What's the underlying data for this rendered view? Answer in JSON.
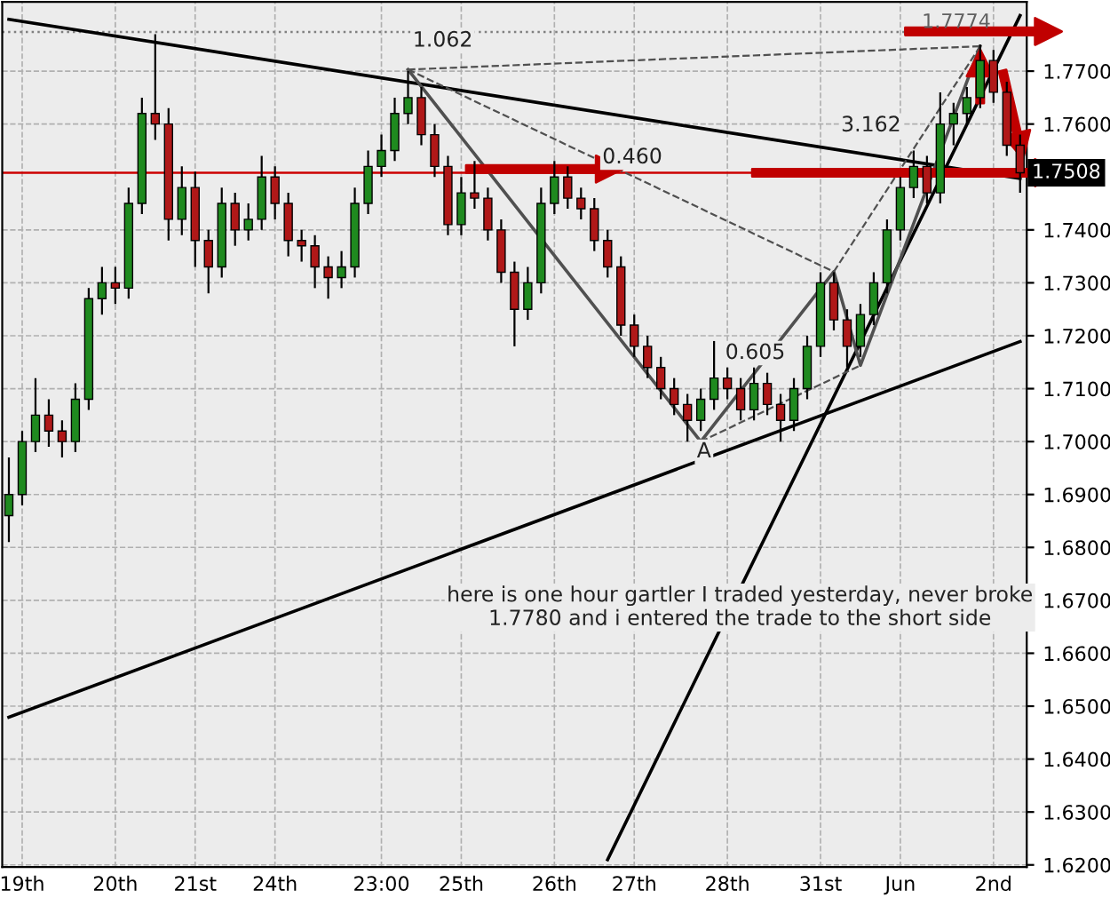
{
  "chart_data": {
    "type": "candlestick",
    "categories": [
      null,
      "19th",
      null,
      null,
      null,
      null,
      null,
      null,
      "20th",
      null,
      null,
      null,
      null,
      null,
      "21st",
      null,
      null,
      null,
      null,
      null,
      "24th",
      null,
      null,
      null,
      null,
      null,
      null,
      null,
      "23:00",
      null,
      null,
      null,
      null,
      null,
      "25th",
      null,
      null,
      null,
      null,
      null,
      null,
      "26th",
      null,
      null,
      null,
      null,
      null,
      "27th",
      null,
      null,
      null,
      null,
      null,
      null,
      "28th",
      null,
      null,
      null,
      null,
      null,
      null,
      "31st",
      null,
      null,
      null,
      null,
      null,
      "Jun",
      null,
      null,
      null,
      null,
      null,
      null,
      "2nd",
      null,
      null
    ],
    "ohlc": [
      [
        1.686,
        1.697,
        1.681,
        1.69
      ],
      [
        1.69,
        1.702,
        1.688,
        1.7
      ],
      [
        1.7,
        1.712,
        1.698,
        1.705
      ],
      [
        1.705,
        1.708,
        1.699,
        1.702
      ],
      [
        1.702,
        1.704,
        1.697,
        1.7
      ],
      [
        1.7,
        1.711,
        1.698,
        1.708
      ],
      [
        1.708,
        1.729,
        1.706,
        1.727
      ],
      [
        1.727,
        1.733,
        1.724,
        1.73
      ],
      [
        1.73,
        1.733,
        1.726,
        1.729
      ],
      [
        1.729,
        1.748,
        1.727,
        1.745
      ],
      [
        1.745,
        1.765,
        1.743,
        1.762
      ],
      [
        1.762,
        1.777,
        1.757,
        1.76
      ],
      [
        1.76,
        1.763,
        1.738,
        1.742
      ],
      [
        1.742,
        1.752,
        1.739,
        1.748
      ],
      [
        1.748,
        1.751,
        1.733,
        1.738
      ],
      [
        1.738,
        1.74,
        1.728,
        1.733
      ],
      [
        1.733,
        1.748,
        1.731,
        1.745
      ],
      [
        1.745,
        1.747,
        1.737,
        1.74
      ],
      [
        1.74,
        1.745,
        1.738,
        1.742
      ],
      [
        1.742,
        1.754,
        1.74,
        1.75
      ],
      [
        1.75,
        1.752,
        1.742,
        1.745
      ],
      [
        1.745,
        1.747,
        1.735,
        1.738
      ],
      [
        1.738,
        1.74,
        1.734,
        1.737
      ],
      [
        1.737,
        1.739,
        1.729,
        1.733
      ],
      [
        1.733,
        1.735,
        1.727,
        1.731
      ],
      [
        1.731,
        1.736,
        1.729,
        1.733
      ],
      [
        1.733,
        1.748,
        1.731,
        1.745
      ],
      [
        1.745,
        1.755,
        1.743,
        1.752
      ],
      [
        1.752,
        1.758,
        1.75,
        1.755
      ],
      [
        1.755,
        1.765,
        1.753,
        1.762
      ],
      [
        1.762,
        1.77,
        1.76,
        1.765
      ],
      [
        1.765,
        1.767,
        1.756,
        1.758
      ],
      [
        1.758,
        1.76,
        1.75,
        1.752
      ],
      [
        1.752,
        1.754,
        1.739,
        1.741
      ],
      [
        1.741,
        1.75,
        1.739,
        1.747
      ],
      [
        1.747,
        1.753,
        1.744,
        1.746
      ],
      [
        1.746,
        1.748,
        1.738,
        1.74
      ],
      [
        1.74,
        1.742,
        1.73,
        1.732
      ],
      [
        1.732,
        1.734,
        1.718,
        1.725
      ],
      [
        1.725,
        1.733,
        1.723,
        1.73
      ],
      [
        1.73,
        1.748,
        1.728,
        1.745
      ],
      [
        1.745,
        1.753,
        1.743,
        1.75
      ],
      [
        1.75,
        1.752,
        1.744,
        1.746
      ],
      [
        1.746,
        1.748,
        1.742,
        1.744
      ],
      [
        1.744,
        1.746,
        1.736,
        1.738
      ],
      [
        1.738,
        1.74,
        1.731,
        1.733
      ],
      [
        1.733,
        1.735,
        1.72,
        1.722
      ],
      [
        1.722,
        1.724,
        1.716,
        1.718
      ],
      [
        1.718,
        1.72,
        1.712,
        1.714
      ],
      [
        1.714,
        1.716,
        1.708,
        1.71
      ],
      [
        1.71,
        1.712,
        1.705,
        1.707
      ],
      [
        1.707,
        1.709,
        1.7,
        1.704
      ],
      [
        1.704,
        1.71,
        1.702,
        1.708
      ],
      [
        1.708,
        1.719,
        1.706,
        1.712
      ],
      [
        1.712,
        1.714,
        1.708,
        1.71
      ],
      [
        1.71,
        1.712,
        1.704,
        1.706
      ],
      [
        1.706,
        1.714,
        1.704,
        1.711
      ],
      [
        1.711,
        1.713,
        1.705,
        1.707
      ],
      [
        1.707,
        1.709,
        1.7,
        1.704
      ],
      [
        1.704,
        1.712,
        1.702,
        1.71
      ],
      [
        1.71,
        1.72,
        1.708,
        1.718
      ],
      [
        1.718,
        1.732,
        1.716,
        1.73
      ],
      [
        1.73,
        1.732,
        1.721,
        1.723
      ],
      [
        1.723,
        1.725,
        1.714,
        1.718
      ],
      [
        1.718,
        1.726,
        1.716,
        1.724
      ],
      [
        1.724,
        1.732,
        1.722,
        1.73
      ],
      [
        1.73,
        1.742,
        1.728,
        1.74
      ],
      [
        1.74,
        1.75,
        1.738,
        1.748
      ],
      [
        1.748,
        1.755,
        1.746,
        1.752
      ],
      [
        1.752,
        1.754,
        1.745,
        1.747
      ],
      [
        1.747,
        1.766,
        1.745,
        1.76
      ],
      [
        1.76,
        1.764,
        1.756,
        1.762
      ],
      [
        1.762,
        1.767,
        1.76,
        1.765
      ],
      [
        1.765,
        1.775,
        1.763,
        1.772
      ],
      [
        1.772,
        1.774,
        1.764,
        1.766
      ],
      [
        1.766,
        1.768,
        1.754,
        1.756
      ],
      [
        1.756,
        1.758,
        1.747,
        1.7508
      ]
    ],
    "series": [
      {
        "type": "line",
        "color": "#000000",
        "values": [
          1.7798,
          null,
          null,
          null,
          null,
          null,
          null,
          null,
          null,
          null,
          null,
          null,
          null,
          null,
          null,
          null,
          null,
          null,
          null,
          null,
          null,
          null,
          null,
          null,
          null,
          null,
          null,
          null,
          null,
          null,
          null,
          null,
          null,
          null,
          null,
          null,
          null,
          null,
          null,
          null,
          null,
          null,
          null,
          null,
          null,
          null,
          null,
          null,
          null,
          null,
          null,
          null,
          null,
          null,
          null,
          null,
          null,
          null,
          null,
          null,
          null,
          null,
          null,
          null,
          null,
          null,
          null,
          null,
          null,
          null,
          null,
          null,
          null,
          null,
          null,
          null,
          1.7497
        ]
      },
      {
        "type": "line",
        "color": "#000000",
        "values": [
          1.6479,
          null,
          null,
          null,
          null,
          null,
          null,
          null,
          null,
          null,
          null,
          null,
          null,
          null,
          null,
          null,
          null,
          null,
          null,
          null,
          null,
          null,
          null,
          null,
          null,
          null,
          null,
          null,
          null,
          null,
          null,
          null,
          null,
          null,
          null,
          null,
          null,
          null,
          null,
          null,
          null,
          null,
          null,
          null,
          null,
          null,
          null,
          null,
          null,
          null,
          null,
          null,
          null,
          null,
          null,
          null,
          null,
          null,
          null,
          null,
          null,
          null,
          null,
          null,
          null,
          null,
          null,
          null,
          null,
          null,
          null,
          null,
          null,
          null,
          null,
          null,
          1.7189
        ]
      },
      {
        "type": "line",
        "color": "#000000",
        "values": [
          null,
          null,
          null,
          null,
          null,
          null,
          null,
          null,
          null,
          null,
          null,
          null,
          null,
          null,
          null,
          null,
          null,
          null,
          null,
          null,
          null,
          null,
          null,
          null,
          null,
          null,
          null,
          null,
          null,
          null,
          null,
          null,
          null,
          null,
          null,
          null,
          null,
          null,
          null,
          null,
          null,
          null,
          null,
          null,
          null,
          1.621,
          null,
          null,
          null,
          null,
          null,
          null,
          null,
          null,
          null,
          null,
          null,
          null,
          null,
          null,
          null,
          null,
          null,
          null,
          null,
          null,
          null,
          null,
          null,
          null,
          null,
          null,
          null,
          null,
          null,
          null,
          1.7805
        ]
      },
      {
        "type": "line",
        "color": "#505050",
        "values": [
          null,
          null,
          null,
          null,
          null,
          null,
          null,
          null,
          null,
          null,
          null,
          null,
          null,
          null,
          null,
          null,
          null,
          null,
          null,
          null,
          null,
          null,
          null,
          null,
          null,
          null,
          null,
          null,
          null,
          null,
          1.7703,
          null,
          null,
          null,
          null,
          null,
          null,
          null,
          null,
          null,
          null,
          null,
          null,
          null,
          null,
          null,
          null,
          null,
          null,
          null,
          null,
          null,
          1.7,
          null,
          null,
          null,
          null,
          null,
          null,
          null,
          null,
          null,
          1.7321,
          null,
          1.7144,
          null,
          null,
          null,
          null,
          null,
          null,
          null,
          null,
          1.7747,
          null,
          null,
          null
        ]
      },
      {
        "type": "line",
        "color": "#505050",
        "line_style": "dashed",
        "values": [
          null,
          null,
          null,
          null,
          null,
          null,
          null,
          null,
          null,
          null,
          null,
          null,
          null,
          null,
          null,
          null,
          null,
          null,
          null,
          null,
          null,
          null,
          null,
          null,
          null,
          null,
          null,
          null,
          null,
          null,
          1.7703,
          null,
          null,
          null,
          null,
          null,
          null,
          null,
          null,
          null,
          null,
          null,
          null,
          null,
          null,
          null,
          null,
          null,
          null,
          null,
          null,
          null,
          null,
          null,
          null,
          null,
          null,
          null,
          null,
          null,
          null,
          null,
          1.7321,
          null,
          null,
          null,
          null,
          null,
          null,
          null,
          null,
          null,
          null,
          null,
          null,
          null,
          null
        ]
      },
      {
        "type": "line",
        "color": "#505050",
        "line_style": "dashed",
        "values": [
          null,
          null,
          null,
          null,
          null,
          null,
          null,
          null,
          null,
          null,
          null,
          null,
          null,
          null,
          null,
          null,
          null,
          null,
          null,
          null,
          null,
          null,
          null,
          null,
          null,
          null,
          null,
          null,
          null,
          null,
          null,
          null,
          null,
          null,
          null,
          null,
          null,
          null,
          null,
          null,
          null,
          null,
          null,
          null,
          null,
          null,
          null,
          null,
          null,
          null,
          null,
          null,
          1.7,
          null,
          null,
          null,
          null,
          null,
          null,
          null,
          null,
          null,
          null,
          null,
          1.7144,
          null,
          null,
          null,
          null,
          null,
          null,
          null,
          null,
          null,
          null,
          null,
          null
        ]
      },
      {
        "type": "line",
        "color": "#505050",
        "line_style": "dashed",
        "values": [
          null,
          null,
          null,
          null,
          null,
          null,
          null,
          null,
          null,
          null,
          null,
          null,
          null,
          null,
          null,
          null,
          null,
          null,
          null,
          null,
          null,
          null,
          null,
          null,
          null,
          null,
          null,
          null,
          null,
          null,
          null,
          null,
          null,
          null,
          null,
          null,
          null,
          null,
          null,
          null,
          null,
          null,
          null,
          null,
          null,
          null,
          null,
          null,
          null,
          null,
          null,
          null,
          null,
          null,
          null,
          null,
          null,
          null,
          null,
          null,
          null,
          null,
          1.7321,
          null,
          null,
          null,
          null,
          null,
          null,
          null,
          null,
          null,
          null,
          1.7747,
          null,
          null,
          null
        ]
      },
      {
        "type": "line",
        "color": "#505050",
        "line_style": "dashed",
        "values": [
          null,
          null,
          null,
          null,
          null,
          null,
          null,
          null,
          null,
          null,
          null,
          null,
          null,
          null,
          null,
          null,
          null,
          null,
          null,
          null,
          null,
          null,
          null,
          null,
          null,
          null,
          null,
          null,
          null,
          null,
          1.7703,
          null,
          null,
          null,
          null,
          null,
          null,
          null,
          null,
          null,
          null,
          null,
          null,
          null,
          null,
          null,
          null,
          null,
          null,
          null,
          null,
          null,
          null,
          null,
          null,
          null,
          null,
          null,
          null,
          null,
          null,
          null,
          null,
          null,
          null,
          null,
          null,
          null,
          null,
          null,
          null,
          null,
          null,
          1.7747,
          null,
          null,
          null
        ]
      }
    ],
    "ref_lines": [
      {
        "axis": "y",
        "value": 1.7508,
        "label": "1.7508",
        "color": "#cc0000"
      },
      {
        "axis": "y",
        "value": 1.7774,
        "label": "1.7774",
        "color": "#808080",
        "line_style": "dotted"
      }
    ],
    "annotations": [
      "1.062",
      "0.460",
      "3.162",
      "0.605",
      "A",
      "here is one hour gartler I traded yesterday, never broke\n1.7780 and i entered the trade to the short side"
    ],
    "ylim": [
      1.6196,
      1.7831
    ],
    "yticks": [
      {
        "value": 1.62,
        "label": "1.6200"
      },
      {
        "value": 1.63,
        "label": "1.6300"
      },
      {
        "value": 1.64,
        "label": "1.6400"
      },
      {
        "value": 1.65,
        "label": "1.6500"
      },
      {
        "value": 1.66,
        "label": "1.6600"
      },
      {
        "value": 1.67,
        "label": "1.6700"
      },
      {
        "value": 1.68,
        "label": "1.6800"
      },
      {
        "value": 1.69,
        "label": "1.6900"
      },
      {
        "value": 1.7,
        "label": "1.7000"
      },
      {
        "value": 1.71,
        "label": "1.7100"
      },
      {
        "value": 1.72,
        "label": "1.7200"
      },
      {
        "value": 1.73,
        "label": "1.7300"
      },
      {
        "value": 1.74,
        "label": "1.7400"
      },
      {
        "value": 1.76,
        "label": "1.7600"
      },
      {
        "value": 1.77,
        "label": "1.7700"
      }
    ],
    "grid": true
  }
}
